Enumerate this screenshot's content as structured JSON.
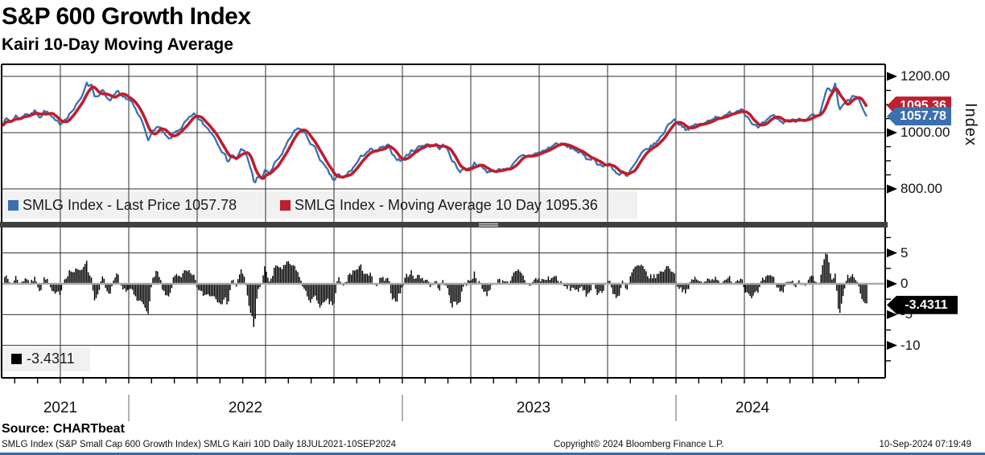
{
  "ui": {
    "title": "S&P 600 Growth Index",
    "subtitle": "Kairi 10-Day Moving Average",
    "legend_top": {
      "items": [
        {
          "swatch_color": "#3A6FB0",
          "label": "SMLG Index - Last Price 1057.78"
        },
        {
          "swatch_color": "#BE1E2D",
          "label": "SMLG Index - Moving Average 10 Day 1095.36"
        }
      ]
    },
    "legend_bottom": {
      "swatch_color": "#000000",
      "label": "-3.4311"
    },
    "right_axis": {
      "unit_label": "Index",
      "tag_ma": "1095.36",
      "tag_last": "1057.78",
      "tag_kairi": "-3.4311",
      "top_ticks": [
        "1200.00",
        "1000.00",
        "800.00"
      ],
      "bottom_ticks": [
        "5",
        "0",
        "-5",
        "-10"
      ]
    },
    "x_axis": {
      "years": [
        "2021",
        "2022",
        "2023",
        "2024"
      ]
    },
    "footer": {
      "source": "Source: CHARTbeat",
      "left": "SMLG Index (S&P Small Cap 600 Growth Index) SMLG Kairi 10D  Daily 18JUL2021-10SEP2024",
      "center": "Copyright© 2024 Bloomberg Finance L.P.",
      "right": "10-Sep-2024 07:19:49"
    },
    "colors": {
      "price": "#3A6FB0",
      "ma": "#BE1E2D",
      "bars": "#000000",
      "grid": "#2f2f2f",
      "band": "#f1f1f1",
      "separator": "#404040",
      "zero_line": "#a9a9a9",
      "year_tick": "#999999",
      "accent_bottom": "#2E6DB4",
      "tag_kairi_bg": "#000000"
    }
  },
  "chart_data": [
    {
      "type": "line",
      "title": "S&P 600 Growth Index",
      "subtitle": "Kairi 10-Day Moving Average",
      "ylabel": "Index",
      "ylim": [
        677,
        1243
      ],
      "ytick_values": [
        1200,
        1000,
        800
      ],
      "ytick_labels": [
        "1200.00",
        "1000.00",
        "800.00"
      ],
      "minor_tick_values": [
        1150,
        1100,
        1050,
        950,
        900,
        850
      ],
      "x_range": [
        "18JUL2021",
        "10SEP2024"
      ],
      "x_years": [
        "2021",
        "2022",
        "2023",
        "2024"
      ],
      "grid": true,
      "legend_position": "bottom-left-band",
      "series": [
        {
          "name": "SMLG Index - Last Price",
          "last": 1057.78,
          "color": "#3A6FB0"
        },
        {
          "name": "SMLG Index - Moving Average 10 Day",
          "last": 1095.36,
          "color": "#BE1E2D",
          "derived": "10-day moving average of the price series"
        }
      ],
      "anchors_note": "price path read off the chart; first value = position along time axis (0-1075 = 18JUL2021-10SEP2024), second = index level",
      "anchors": [
        [
          0,
          1032
        ],
        [
          6,
          1048
        ],
        [
          12,
          1040
        ],
        [
          18,
          1060
        ],
        [
          24,
          1050
        ],
        [
          30,
          1072
        ],
        [
          36,
          1062
        ],
        [
          42,
          1078
        ],
        [
          48,
          1058
        ],
        [
          54,
          1080
        ],
        [
          60,
          1062
        ],
        [
          66,
          1040
        ],
        [
          72,
          1028
        ],
        [
          78,
          1048
        ],
        [
          84,
          1068
        ],
        [
          90,
          1085
        ],
        [
          96,
          1108
        ],
        [
          100,
          1132
        ],
        [
          105,
          1180
        ],
        [
          108,
          1166
        ],
        [
          111,
          1178
        ],
        [
          115,
          1138
        ],
        [
          120,
          1122
        ],
        [
          125,
          1148
        ],
        [
          130,
          1128
        ],
        [
          135,
          1108
        ],
        [
          140,
          1128
        ],
        [
          144,
          1142
        ],
        [
          148,
          1125
        ],
        [
          152,
          1132
        ],
        [
          156,
          1118
        ],
        [
          160,
          1112
        ],
        [
          164,
          1092
        ],
        [
          168,
          1070
        ],
        [
          172,
          1052
        ],
        [
          176,
          1030
        ],
        [
          180,
          1000
        ],
        [
          183,
          976
        ],
        [
          188,
          1004
        ],
        [
          193,
          1022
        ],
        [
          198,
          1010
        ],
        [
          203,
          988
        ],
        [
          209,
          970
        ],
        [
          213,
          992
        ],
        [
          218,
          1006
        ],
        [
          223,
          1018
        ],
        [
          228,
          1034
        ],
        [
          234,
          1050
        ],
        [
          240,
          1062
        ],
        [
          247,
          1040
        ],
        [
          254,
          1020
        ],
        [
          260,
          1005
        ],
        [
          267,
          975
        ],
        [
          274,
          940
        ],
        [
          281,
          898
        ],
        [
          286,
          922
        ],
        [
          292,
          906
        ],
        [
          298,
          938
        ],
        [
          303,
          928
        ],
        [
          307,
          898
        ],
        [
          311,
          858
        ],
        [
          314,
          822
        ],
        [
          318,
          842
        ],
        [
          322,
          830
        ],
        [
          328,
          868
        ],
        [
          334,
          856
        ],
        [
          340,
          892
        ],
        [
          348,
          924
        ],
        [
          355,
          958
        ],
        [
          362,
          996
        ],
        [
          370,
          1016
        ],
        [
          376,
          1000
        ],
        [
          382,
          972
        ],
        [
          388,
          950
        ],
        [
          394,
          918
        ],
        [
          400,
          884
        ],
        [
          404,
          866
        ],
        [
          409,
          844
        ],
        [
          413,
          828
        ],
        [
          418,
          852
        ],
        [
          424,
          832
        ],
        [
          428,
          848
        ],
        [
          434,
          866
        ],
        [
          440,
          886
        ],
        [
          447,
          912
        ],
        [
          452,
          930
        ],
        [
          458,
          940
        ],
        [
          464,
          926
        ],
        [
          470,
          942
        ],
        [
          476,
          946
        ],
        [
          481,
          950
        ],
        [
          487,
          920
        ],
        [
          493,
          906
        ],
        [
          496,
          900
        ],
        [
          500,
          908
        ],
        [
          506,
          926
        ],
        [
          512,
          940
        ],
        [
          518,
          948
        ],
        [
          524,
          956
        ],
        [
          529,
          962
        ],
        [
          534,
          950
        ],
        [
          539,
          958
        ],
        [
          544,
          946
        ],
        [
          549,
          954
        ],
        [
          555,
          934
        ],
        [
          560,
          905
        ],
        [
          565,
          880
        ],
        [
          569,
          862
        ],
        [
          573,
          874
        ],
        [
          578,
          868
        ],
        [
          583,
          880
        ],
        [
          588,
          894
        ],
        [
          593,
          886
        ],
        [
          598,
          872
        ],
        [
          603,
          860
        ],
        [
          608,
          868
        ],
        [
          613,
          856
        ],
        [
          618,
          874
        ],
        [
          623,
          868
        ],
        [
          628,
          880
        ],
        [
          632,
          872
        ],
        [
          636,
          884
        ],
        [
          641,
          900
        ],
        [
          645,
          912
        ],
        [
          650,
          918
        ],
        [
          655,
          914
        ],
        [
          660,
          922
        ],
        [
          668,
          928
        ],
        [
          676,
          938
        ],
        [
          684,
          952
        ],
        [
          691,
          963
        ],
        [
          698,
          954
        ],
        [
          706,
          946
        ],
        [
          713,
          940
        ],
        [
          720,
          926
        ],
        [
          727,
          904
        ],
        [
          734,
          914
        ],
        [
          740,
          894
        ],
        [
          748,
          880
        ],
        [
          755,
          890
        ],
        [
          762,
          866
        ],
        [
          768,
          850
        ],
        [
          772,
          860
        ],
        [
          777,
          838
        ],
        [
          782,
          866
        ],
        [
          788,
          890
        ],
        [
          795,
          920
        ],
        [
          803,
          944
        ],
        [
          810,
          956
        ],
        [
          818,
          978
        ],
        [
          826,
          1018
        ],
        [
          834,
          1048
        ],
        [
          840,
          1038
        ],
        [
          847,
          1024
        ],
        [
          853,
          1006
        ],
        [
          858,
          1020
        ],
        [
          865,
          1032
        ],
        [
          872,
          1026
        ],
        [
          880,
          1048
        ],
        [
          890,
          1060
        ],
        [
          898,
          1054
        ],
        [
          905,
          1068
        ],
        [
          913,
          1078
        ],
        [
          920,
          1088
        ],
        [
          926,
          1062
        ],
        [
          932,
          1040
        ],
        [
          940,
          1014
        ],
        [
          946,
          1028
        ],
        [
          953,
          1044
        ],
        [
          960,
          1058
        ],
        [
          964,
          1050
        ],
        [
          970,
          1034
        ],
        [
          977,
          1048
        ],
        [
          985,
          1040
        ],
        [
          992,
          1054
        ],
        [
          1000,
          1046
        ],
        [
          1008,
          1060
        ],
        [
          1015,
          1050
        ],
        [
          1019,
          1078
        ],
        [
          1023,
          1130
        ],
        [
          1027,
          1156
        ],
        [
          1031,
          1146
        ],
        [
          1036,
          1170
        ],
        [
          1041,
          1076
        ],
        [
          1046,
          1096
        ],
        [
          1052,
          1112
        ],
        [
          1056,
          1120
        ],
        [
          1060,
          1132
        ],
        [
          1064,
          1124
        ],
        [
          1068,
          1098
        ],
        [
          1071,
          1078
        ],
        [
          1073,
          1066
        ],
        [
          1075,
          1057.78
        ]
      ],
      "render": {
        "samples": 550,
        "noise_amp": 6.5,
        "noise_persistence": 0.5,
        "seed": 7,
        "ma_window_samples": 7
      }
    },
    {
      "type": "bar",
      "name": "SMLG Kairi 10D",
      "last": -3.4311,
      "ylim": [
        -15.2,
        9.2
      ],
      "ytick_values": [
        5,
        0,
        -5,
        -10
      ],
      "ytick_labels": [
        "5",
        "0",
        "-5",
        "-10"
      ],
      "minor_tick_values": [
        7.5,
        2.5,
        -2.5,
        -7.5,
        -12.5
      ],
      "grid": true,
      "derived": "kairi = (price - ma10) / ma10 * 100; bars computed from the price series above",
      "notable_extremes": {
        "jun_2022_min": -9.5,
        "jan_2022_min": -7.5,
        "oct_2023_min": -4.3,
        "jul_2024_max": 6.9,
        "aug_2024_min": -6.8
      }
    }
  ]
}
